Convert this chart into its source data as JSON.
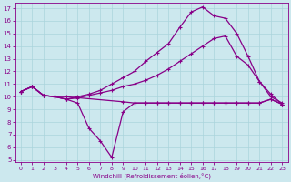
{
  "xlabel": "Windchill (Refroidissement éolien,°C)",
  "bg_color": "#cce8ee",
  "line_color": "#880088",
  "grid_color": "#aad4dc",
  "xlim": [
    -0.5,
    23.5
  ],
  "ylim": [
    4.8,
    17.4
  ],
  "xticks": [
    0,
    1,
    2,
    3,
    4,
    5,
    6,
    7,
    8,
    9,
    10,
    11,
    12,
    13,
    14,
    15,
    16,
    17,
    18,
    19,
    20,
    21,
    22,
    23
  ],
  "yticks": [
    5,
    6,
    7,
    8,
    9,
    10,
    11,
    12,
    13,
    14,
    15,
    16,
    17
  ],
  "series": {
    "line_flat": {
      "x": [
        0,
        1,
        2,
        3,
        4,
        9,
        10,
        11,
        12,
        13,
        14,
        15,
        16,
        17,
        18,
        19,
        20,
        21,
        22,
        23
      ],
      "y": [
        10.4,
        10.8,
        10.1,
        10.0,
        10.0,
        9.6,
        9.5,
        9.5,
        9.5,
        9.5,
        9.5,
        9.5,
        9.5,
        9.5,
        9.5,
        9.5,
        9.5,
        9.5,
        9.8,
        9.4
      ]
    },
    "line_wavy": {
      "x": [
        0,
        1,
        2,
        3,
        4,
        5,
        6,
        7,
        8,
        9,
        10,
        11,
        12,
        13,
        14,
        15,
        16,
        17,
        18,
        19,
        20,
        21,
        22,
        23
      ],
      "y": [
        10.4,
        10.8,
        10.1,
        10.0,
        9.8,
        9.5,
        7.5,
        6.5,
        5.2,
        8.8,
        9.5,
        9.5,
        9.5,
        9.5,
        9.5,
        9.5,
        9.5,
        9.5,
        9.5,
        9.5,
        9.5,
        9.5,
        9.8,
        9.4
      ]
    },
    "line_linear1": {
      "x": [
        0,
        1,
        2,
        3,
        4,
        5,
        6,
        7,
        8,
        9,
        10,
        11,
        12,
        13,
        14,
        15,
        16,
        17,
        18,
        19,
        20,
        21,
        22,
        23
      ],
      "y": [
        10.4,
        10.8,
        10.1,
        10.0,
        9.8,
        9.9,
        10.1,
        10.3,
        10.5,
        10.8,
        11.0,
        11.3,
        11.7,
        12.2,
        12.8,
        13.4,
        14.0,
        14.6,
        14.8,
        13.2,
        12.5,
        11.2,
        10.2,
        9.4
      ]
    },
    "line_peaked": {
      "x": [
        0,
        1,
        2,
        3,
        4,
        5,
        6,
        7,
        8,
        9,
        10,
        11,
        12,
        13,
        14,
        15,
        16,
        17,
        18,
        19,
        20,
        21,
        22,
        23
      ],
      "y": [
        10.4,
        10.8,
        10.1,
        10.0,
        9.8,
        10.0,
        10.2,
        10.5,
        11.0,
        11.5,
        12.0,
        12.8,
        13.5,
        14.2,
        15.5,
        16.7,
        17.1,
        16.4,
        16.2,
        15.0,
        13.2,
        11.2,
        10.0,
        9.5
      ]
    }
  }
}
